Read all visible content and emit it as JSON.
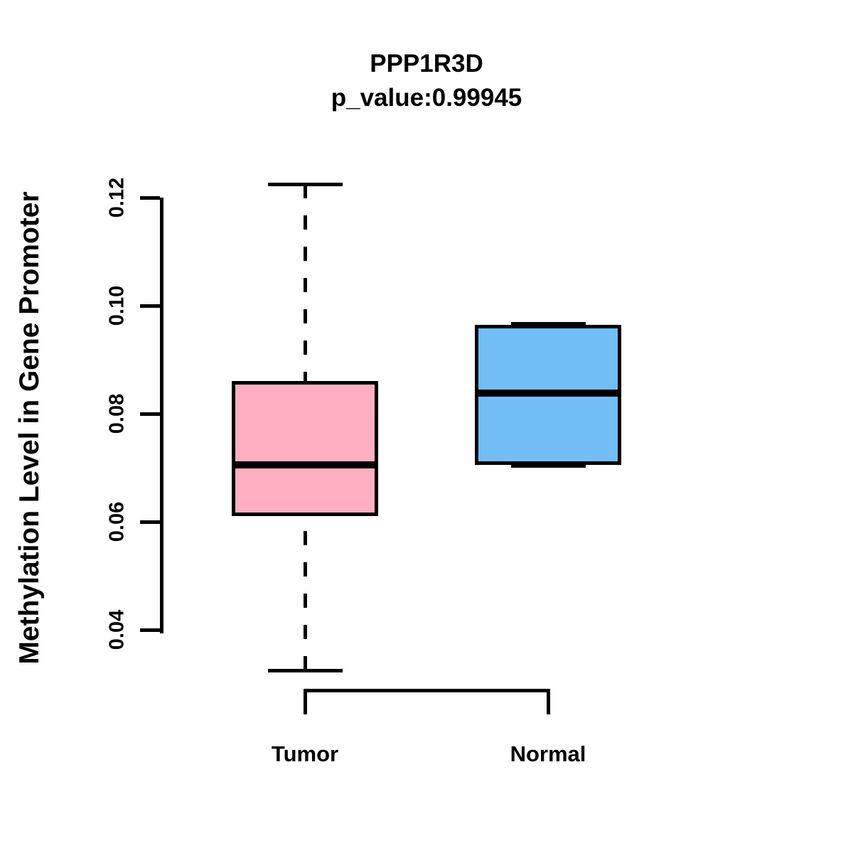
{
  "title": "PPP1R3D",
  "subtitle": "p_value:0.99945",
  "y_axis": {
    "label": "Methylation Level in Gene Promoter",
    "tick_labels": [
      "0.04",
      "0.06",
      "0.08",
      "0.10",
      "0.12"
    ]
  },
  "x_axis": {
    "group_labels": [
      "Tumor",
      "Normal"
    ]
  },
  "colors": {
    "tumor_fill": "#FFAFC2",
    "normal_fill": "#74BEF8",
    "line": "#000000",
    "background": "#FFFFFF"
  },
  "chart_data": {
    "type": "boxplot",
    "title": "PPP1R3D",
    "subtitle": "p_value:0.99945",
    "ylabel": "Methylation Level in Gene Promoter",
    "xlabel": "",
    "ylim": [
      0.04,
      0.12
    ],
    "yticks": [
      0.04,
      0.06,
      0.08,
      0.1,
      0.12
    ],
    "grid": false,
    "legend": false,
    "categories": [
      "Tumor",
      "Normal"
    ],
    "series": [
      {
        "name": "Tumor",
        "fill": "#FFAFC2",
        "whisker_low": 0.0325,
        "q1": 0.061,
        "median": 0.0705,
        "q3": 0.086,
        "whisker_high": 0.1225
      },
      {
        "name": "Normal",
        "fill": "#74BEF8",
        "whisker_low": 0.0705,
        "q1": 0.0705,
        "median": 0.0838,
        "q3": 0.0965,
        "whisker_high": 0.0965
      }
    ]
  }
}
